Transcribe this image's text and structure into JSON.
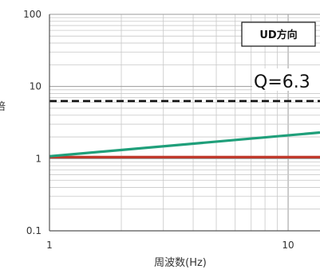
{
  "chart_data": {
    "type": "line",
    "title": "",
    "xlabel": "周波数(Hz)",
    "ylabel": "",
    "x_scale": "log",
    "y_scale": "log",
    "xlim": [
      1,
      13.6
    ],
    "ylim": [
      0.1,
      100
    ],
    "x_ticks": [
      {
        "value": 1,
        "label": "1"
      },
      {
        "value": 10,
        "label": "10"
      }
    ],
    "y_ticks": [
      {
        "value": 100,
        "label": "100"
      },
      {
        "value": 10,
        "label": "10"
      },
      {
        "value": 1,
        "label": "1"
      },
      {
        "value": 0.1,
        "label": "0.1"
      }
    ],
    "grid": true,
    "series": [
      {
        "x": [
          1,
          13.6
        ],
        "y": [
          1.05,
          1.05
        ],
        "color": "#c0392b",
        "style": "solid"
      },
      {
        "x": [
          1,
          13.6
        ],
        "y": [
          1.08,
          2.3
        ],
        "color": "#1f9f7a",
        "style": "solid"
      },
      {
        "x": [
          1,
          13.6
        ],
        "y": [
          6.3,
          6.3
        ],
        "color": "#111111",
        "style": "dashed"
      }
    ],
    "annotations": {
      "direction_box": "UD方向",
      "q_label": "Q=6.3"
    },
    "partial_ylabel_glyph": "倍"
  }
}
